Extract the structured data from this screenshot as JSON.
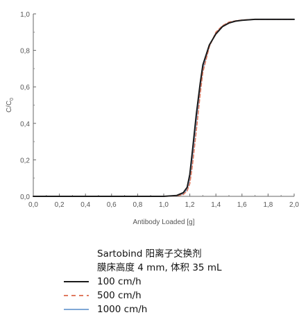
{
  "chart_data": {
    "type": "line",
    "xlabel": "Antibody Loaded [g]",
    "ylabel": "C/C",
    "ylabel_subscript": "0",
    "xlim": [
      0.0,
      2.0
    ],
    "ylim": [
      0.0,
      1.0
    ],
    "xticks": [
      "0,0",
      "0,2",
      "0,4",
      "0,6",
      "0,8",
      "1,0",
      "1,2",
      "1,4",
      "1,6",
      "1,8",
      "2,0"
    ],
    "yticks": [
      "0,0",
      "0,2",
      "0,4",
      "0,6",
      "0,8",
      "1,0"
    ],
    "grid": false,
    "series": [
      {
        "name": "100 cm/h",
        "color": "#1a1a1a",
        "style": "solid",
        "x": [
          0.0,
          1.0,
          1.1,
          1.15,
          1.18,
          1.2,
          1.22,
          1.25,
          1.28,
          1.3,
          1.35,
          1.4,
          1.45,
          1.5,
          1.55,
          1.6,
          1.7,
          1.8,
          2.0
        ],
        "y": [
          0.0,
          0.0,
          0.005,
          0.02,
          0.05,
          0.12,
          0.25,
          0.45,
          0.62,
          0.72,
          0.83,
          0.89,
          0.93,
          0.95,
          0.96,
          0.965,
          0.97,
          0.97,
          0.97
        ]
      },
      {
        "name": "500 cm/h",
        "color": "#e07a5f",
        "style": "dashed",
        "x": [
          0.0,
          1.0,
          1.1,
          1.15,
          1.18,
          1.2,
          1.22,
          1.25,
          1.28,
          1.3,
          1.35,
          1.4,
          1.45,
          1.5,
          1.55,
          1.6,
          1.7,
          1.8,
          2.0
        ],
        "y": [
          0.0,
          0.0,
          0.003,
          0.01,
          0.03,
          0.07,
          0.17,
          0.36,
          0.56,
          0.68,
          0.82,
          0.9,
          0.935,
          0.955,
          0.962,
          0.966,
          0.97,
          0.97,
          0.97
        ]
      },
      {
        "name": "1000 cm/h",
        "color": "#7fa8d6",
        "style": "solid",
        "x": [
          0.0,
          1.0,
          1.1,
          1.15,
          1.18,
          1.2,
          1.22,
          1.25,
          1.28,
          1.3,
          1.35,
          1.4,
          1.45,
          1.5,
          1.55,
          1.6,
          1.7,
          1.8,
          2.0
        ],
        "y": [
          0.0,
          0.0,
          0.004,
          0.015,
          0.04,
          0.1,
          0.22,
          0.42,
          0.6,
          0.7,
          0.825,
          0.895,
          0.93,
          0.952,
          0.961,
          0.965,
          0.97,
          0.97,
          0.97
        ]
      }
    ]
  },
  "legend": {
    "title_line1": "Sartobind 阳离子交换剂",
    "title_line2": "膜床高度 4 mm, 体积 35 mL",
    "items": [
      {
        "label": "100 cm/h",
        "color": "#1a1a1a",
        "style": "solid"
      },
      {
        "label": "500 cm/h",
        "color": "#e07a5f",
        "style": "dashed"
      },
      {
        "label": "1000 cm/h",
        "color": "#7fa8d6",
        "style": "solid"
      }
    ]
  }
}
